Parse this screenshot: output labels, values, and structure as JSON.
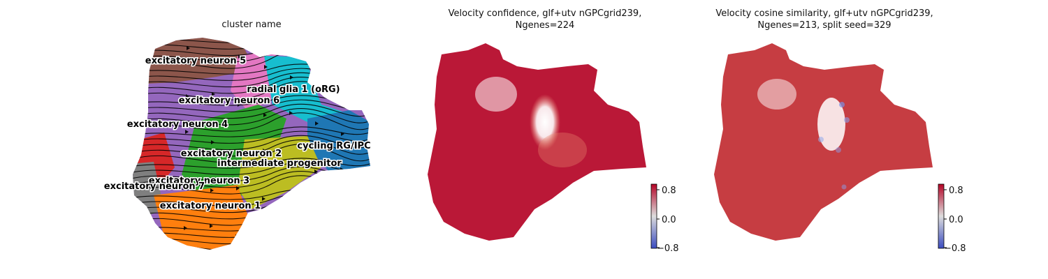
{
  "panels": {
    "cluster": {
      "title": "cluster name"
    },
    "confidence": {
      "title_line1": "Velocity confidence, glf+utv nGPCgrid239,",
      "title_line2": "Ngenes=224"
    },
    "cosine": {
      "title_line1": "Velocity cosine similarity, glf+utv nGPCgrid239,",
      "title_line2": "Ngenes=213, split seed=329"
    }
  },
  "chart_data": [
    {
      "type": "scatter",
      "title": "cluster name",
      "embedding_plot_with_velocity_streamlines": true,
      "clusters": [
        {
          "name": "excitatory neuron 5",
          "color": "#8c564b"
        },
        {
          "name": "radial glia 1 (oRG)",
          "color": "#17becf"
        },
        {
          "name": "excitatory neuron 6",
          "color": "#e377c2"
        },
        {
          "name": "excitatory neuron 4",
          "color": "#9467bd"
        },
        {
          "name": "cycling RG/IPC",
          "color": "#1f77b4"
        },
        {
          "name": "excitatory neuron 2",
          "color": "#2ca02c"
        },
        {
          "name": "intermediate progenitor",
          "color": "#bcbd22"
        },
        {
          "name": "excitatory neuron 3",
          "color": "#d62728"
        },
        {
          "name": "excitatory neuron 7",
          "color": "#7f7f7f"
        },
        {
          "name": "excitatory neuron 1",
          "color": "#ff7f0e"
        }
      ],
      "grid": false,
      "axes_visible": false
    },
    {
      "type": "scatter",
      "title": "Velocity confidence, glf+utv nGPCgrid239, Ngenes=224",
      "colormap": "coolwarm",
      "colorbar": {
        "ticks": [
          "0.8",
          "0.0",
          "−0.8"
        ],
        "range": [
          -0.8,
          0.8
        ]
      },
      "dominant_color": "#b40426",
      "grid": false,
      "axes_visible": false
    },
    {
      "type": "scatter",
      "title": "Velocity cosine similarity, glf+utv nGPCgrid239, Ngenes=213, split seed=329",
      "colormap": "coolwarm",
      "colorbar": {
        "ticks": [
          "0.8",
          "0.0",
          "−0.8"
        ],
        "range": [
          -0.8,
          0.8
        ]
      },
      "dominant_color": "#c0282d",
      "grid": false,
      "axes_visible": false
    }
  ]
}
